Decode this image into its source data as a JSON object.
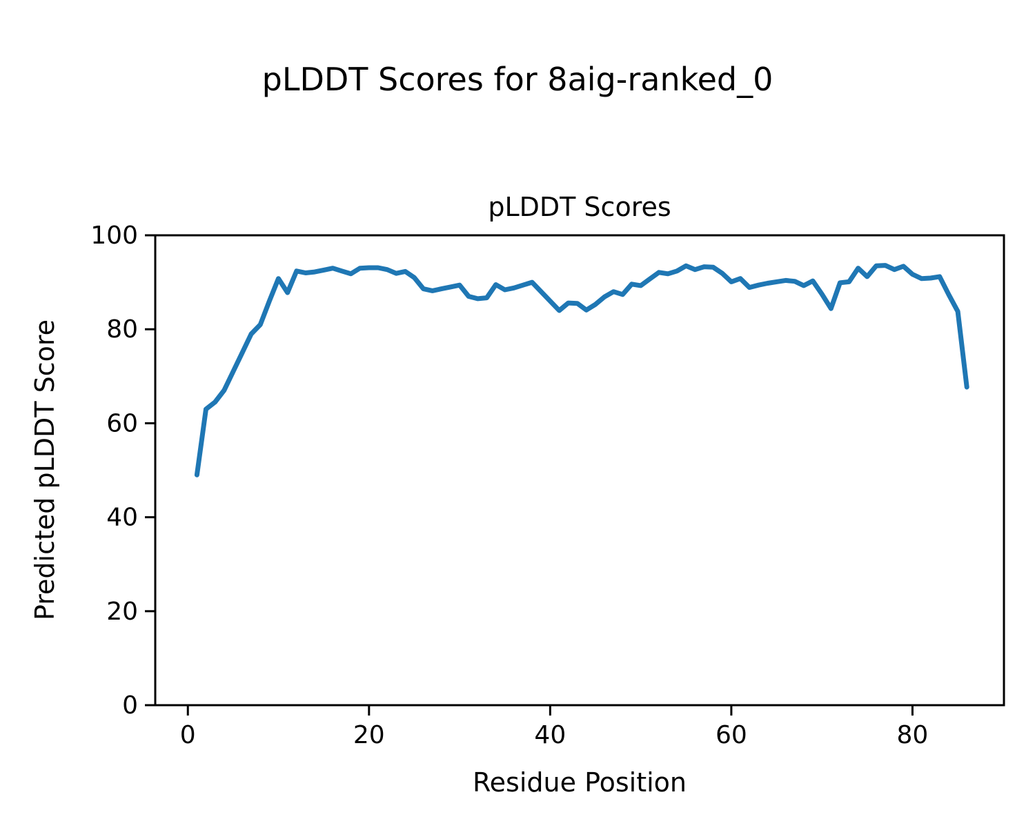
{
  "figure": {
    "background": "#ffffff",
    "suptitle": "pLDDT Scores for 8aig-ranked_0"
  },
  "chart_data": {
    "type": "line",
    "title": "pLDDT Scores",
    "xlabel": "Residue Position",
    "ylabel": "Predicted pLDDT Score",
    "xlim": [
      -3.6,
      90.1
    ],
    "ylim": [
      0,
      100
    ],
    "x_ticks": [
      0,
      20,
      40,
      60,
      80
    ],
    "y_ticks": [
      0,
      20,
      40,
      60,
      80,
      100
    ],
    "grid": false,
    "legend": "none",
    "line_color": "#1f77b4",
    "axis_color": "#000000",
    "x": [
      1,
      2,
      3,
      4,
      5,
      6,
      7,
      8,
      9,
      10,
      11,
      12,
      13,
      14,
      15,
      16,
      17,
      18,
      19,
      20,
      21,
      22,
      23,
      24,
      25,
      26,
      27,
      28,
      29,
      30,
      31,
      32,
      33,
      34,
      35,
      36,
      37,
      38,
      39,
      40,
      41,
      42,
      43,
      44,
      45,
      46,
      47,
      48,
      49,
      50,
      51,
      52,
      53,
      54,
      55,
      56,
      57,
      58,
      59,
      60,
      61,
      62,
      63,
      64,
      65,
      66,
      67,
      68,
      69,
      70,
      71,
      72,
      73,
      74,
      75,
      76,
      77,
      78,
      79,
      80,
      81,
      82,
      83,
      84,
      85,
      86
    ],
    "y": [
      49.0,
      63.0,
      64.5,
      67.0,
      71.0,
      75.0,
      79.0,
      81.0,
      86.0,
      90.8,
      87.8,
      92.4,
      92.0,
      92.2,
      92.6,
      93.0,
      92.4,
      91.8,
      93.0,
      93.1,
      93.1,
      92.7,
      91.9,
      92.3,
      91.0,
      88.6,
      88.2,
      88.6,
      89.0,
      89.4,
      87.0,
      86.5,
      86.7,
      89.5,
      88.4,
      88.8,
      89.4,
      90.0,
      88.0,
      86.0,
      84.0,
      85.6,
      85.5,
      84.1,
      85.3,
      86.9,
      88.0,
      87.4,
      89.6,
      89.3,
      90.7,
      92.1,
      91.8,
      92.4,
      93.5,
      92.7,
      93.3,
      93.2,
      91.9,
      90.1,
      90.8,
      88.9,
      89.4,
      89.8,
      90.1,
      90.4,
      90.2,
      89.3,
      90.3,
      87.5,
      84.4,
      89.9,
      90.1,
      93.0,
      91.2,
      93.5,
      93.6,
      92.7,
      93.4,
      91.7,
      90.8,
      90.9,
      91.2,
      87.4,
      83.8,
      67.7
    ]
  }
}
